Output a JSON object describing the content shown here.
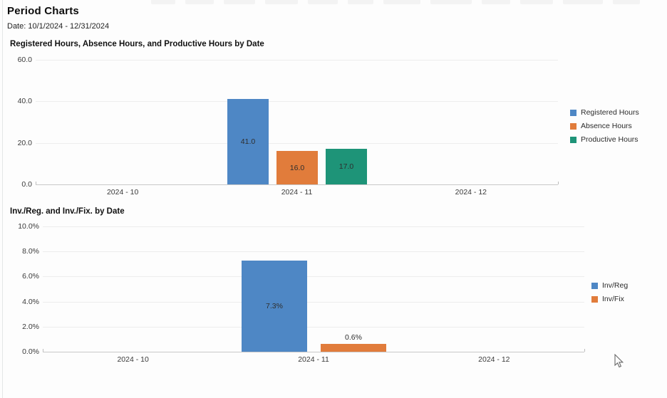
{
  "page": {
    "title": "Period Charts",
    "date_range": "Date: 10/1/2024 - 12/31/2024"
  },
  "colors": {
    "registered_blue": "#4e87c5",
    "absence_orange": "#e17c3b",
    "productive_green": "#1e9478",
    "gridline": "#ededed",
    "axis": "#c9c9c9"
  },
  "chart_data": [
    {
      "type": "bar",
      "title": "Registered Hours, Absence Hours, and Productive Hours by Date",
      "categories": [
        "2024 - 10",
        "2024 - 11",
        "2024 - 12"
      ],
      "series": [
        {
          "name": "Registered Hours",
          "color": "#4e87c5",
          "values": [
            0,
            41.0,
            0
          ],
          "labels": [
            "",
            "41.0",
            ""
          ]
        },
        {
          "name": "Absence Hours",
          "color": "#e17c3b",
          "values": [
            0,
            16.0,
            0
          ],
          "labels": [
            "",
            "16.0",
            ""
          ]
        },
        {
          "name": "Productive Hours",
          "color": "#1e9478",
          "values": [
            0,
            17.0,
            0
          ],
          "labels": [
            "",
            "17.0",
            ""
          ]
        }
      ],
      "ylabel": "",
      "xlabel": "",
      "ylim": [
        0,
        60
      ],
      "yticks": [
        "0.0",
        "20.0",
        "40.0",
        "60.0"
      ],
      "grid": true,
      "legend_position": "right",
      "legend": [
        "Registered Hours",
        "Absence Hours",
        "Productive Hours"
      ]
    },
    {
      "type": "bar",
      "title": "Inv./Reg. and Inv./Fix. by Date",
      "categories": [
        "2024 - 10",
        "2024 - 11",
        "2024 - 12"
      ],
      "series": [
        {
          "name": "Inv/Reg",
          "color": "#4e87c5",
          "values": [
            0,
            7.3,
            0
          ],
          "labels": [
            "",
            "7.3%",
            ""
          ]
        },
        {
          "name": "Inv/Fix",
          "color": "#e17c3b",
          "values": [
            0,
            0.6,
            0
          ],
          "labels": [
            "",
            "0.6%",
            ""
          ]
        }
      ],
      "ylabel": "",
      "xlabel": "",
      "ylim": [
        0,
        10
      ],
      "yticks": [
        "0.0%",
        "2.0%",
        "4.0%",
        "6.0%",
        "8.0%",
        "10.0%"
      ],
      "grid": true,
      "legend_position": "right",
      "legend": [
        "Inv/Reg",
        "Inv/Fix"
      ]
    }
  ]
}
